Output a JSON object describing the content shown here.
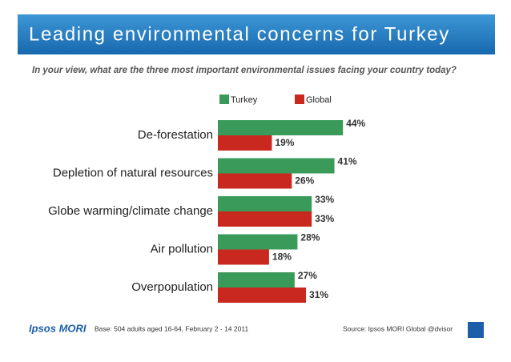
{
  "chart_data": {
    "type": "bar",
    "orientation": "horizontal",
    "title": "Leading environmental concerns for Turkey",
    "subtitle": "In your view, what are the three most important environmental issues facing your country today?",
    "categories": [
      "De-forestation",
      "Depletion of natural resources",
      "Globe warming/climate change",
      "Air pollution",
      "Overpopulation"
    ],
    "series": [
      {
        "name": "Turkey",
        "color": "#3a9a5a",
        "values": [
          44,
          41,
          33,
          28,
          27
        ],
        "value_labels": [
          "44%",
          "41%",
          "33%",
          "28%",
          "27%"
        ]
      },
      {
        "name": "Global",
        "color": "#c9281f",
        "values": [
          19,
          26,
          33,
          18,
          31
        ],
        "value_labels": [
          "19%",
          "26%",
          "33%",
          "18%",
          "31%"
        ]
      }
    ],
    "footer": {
      "logo": "Ipsos MORI",
      "base": "Base: 504 adults aged 16-64, February 2 - 14 2011",
      "source": "Source: Ipsos MORI Global @dvisor"
    }
  }
}
